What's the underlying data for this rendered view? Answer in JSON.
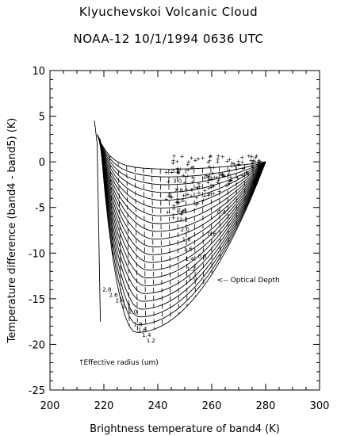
{
  "chart_data": {
    "type": "scatter",
    "title": "Klyuchevskoi Volcanic Cloud",
    "subtitle": "NOAA-12  10/1/1994  0636 UTC",
    "xlabel": "Brightness temperature of band4 (K)",
    "ylabel": "Temperature difference (band4 - band5) (K)",
    "xlim": [
      200,
      300
    ],
    "ylim": [
      -25,
      10
    ],
    "xticks": [
      200,
      220,
      240,
      260,
      280,
      300
    ],
    "yticks": [
      -25,
      -20,
      -15,
      -10,
      -5,
      0,
      5,
      10
    ],
    "grid": false,
    "annotations": {
      "optical_depth": "<-- Optical Depth",
      "effective_radius": "Effective radius (um)"
    },
    "radius_labels": [
      "2.8",
      "2.6",
      "2.4",
      "2.2",
      "2.0",
      "1.8",
      "1.6",
      "1.4",
      "1.2"
    ],
    "optical_depth_labels": [
      "3.6",
      "3.0",
      "2.8",
      "2.6",
      "2.4",
      "2.2",
      "2.0",
      "1.8",
      "1.6",
      "1.4",
      "1.2",
      "1.0",
      "0.8",
      "0.6",
      "0.4"
    ],
    "colors": {
      "curves": "#000000",
      "observations": "#cc0000"
    },
    "model_family": {
      "clear_sky_point": [
        280,
        0
      ],
      "left_tip": [
        216.5,
        4.5
      ],
      "description_of_grid": "radius and optical depth curves",
      "min_curve_minimum": [
        232,
        -18.7
      ]
    },
    "observations": {
      "x_range": [
        242,
        278
      ],
      "y_range": [
        -7,
        0.5
      ]
    }
  }
}
